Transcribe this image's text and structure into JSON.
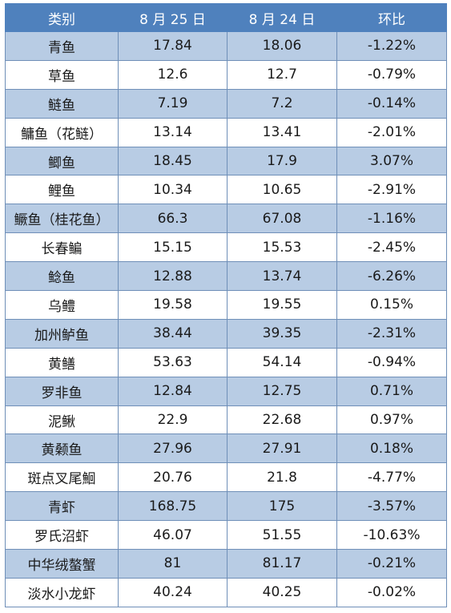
{
  "table": {
    "headers": [
      "类别",
      "8 月 25 日",
      "8 月 24 日",
      "环比"
    ],
    "rows": [
      {
        "category": "青鱼",
        "aug25": "17.84",
        "aug24": "18.06",
        "change": "-1.22%"
      },
      {
        "category": "草鱼",
        "aug25": "12.6",
        "aug24": "12.7",
        "change": "-0.79%"
      },
      {
        "category": "鲢鱼",
        "aug25": "7.19",
        "aug24": "7.2",
        "change": "-0.14%"
      },
      {
        "category": "鳙鱼（花鲢）",
        "aug25": "13.14",
        "aug24": "13.41",
        "change": "-2.01%"
      },
      {
        "category": "鲫鱼",
        "aug25": "18.45",
        "aug24": "17.9",
        "change": "3.07%"
      },
      {
        "category": "鲤鱼",
        "aug25": "10.34",
        "aug24": "10.65",
        "change": "-2.91%"
      },
      {
        "category": "鳜鱼（桂花鱼）",
        "aug25": "66.3",
        "aug24": "67.08",
        "change": "-1.16%"
      },
      {
        "category": "长春鳊",
        "aug25": "15.15",
        "aug24": "15.53",
        "change": "-2.45%"
      },
      {
        "category": "鲶鱼",
        "aug25": "12.88",
        "aug24": "13.74",
        "change": "-6.26%"
      },
      {
        "category": "乌鳢",
        "aug25": "19.58",
        "aug24": "19.55",
        "change": "0.15%"
      },
      {
        "category": "加州鲈鱼",
        "aug25": "38.44",
        "aug24": "39.35",
        "change": "-2.31%"
      },
      {
        "category": "黄鳝",
        "aug25": "53.63",
        "aug24": "54.14",
        "change": "-0.94%"
      },
      {
        "category": "罗非鱼",
        "aug25": "12.84",
        "aug24": "12.75",
        "change": "0.71%"
      },
      {
        "category": "泥鳅",
        "aug25": "22.9",
        "aug24": "22.68",
        "change": "0.97%"
      },
      {
        "category": "黄颡鱼",
        "aug25": "27.96",
        "aug24": "27.91",
        "change": "0.18%"
      },
      {
        "category": "斑点叉尾鮰",
        "aug25": "20.76",
        "aug24": "21.8",
        "change": "-4.77%"
      },
      {
        "category": "青虾",
        "aug25": "168.75",
        "aug24": "175",
        "change": "-3.57%"
      },
      {
        "category": "罗氏沼虾",
        "aug25": "46.07",
        "aug24": "51.55",
        "change": "-10.63%"
      },
      {
        "category": "中华绒螯蟹",
        "aug25": "81",
        "aug24": "81.17",
        "change": "-0.21%"
      },
      {
        "category": "淡水小龙虾",
        "aug25": "40.24",
        "aug24": "40.25",
        "change": "-0.02%"
      }
    ]
  },
  "colors": {
    "header_bg": "#4f81bd",
    "header_text": "#ffffff",
    "stripe_bg": "#b8cce4",
    "plain_bg": "#ffffff",
    "border": "#6f8fb8"
  }
}
